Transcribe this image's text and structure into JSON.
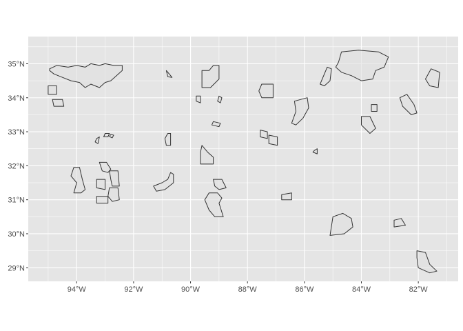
{
  "chart_data": {
    "type": "map",
    "title": "",
    "xlabel": "",
    "ylabel": "",
    "xlim": [
      -95.7,
      -80.6
    ],
    "ylim": [
      28.6,
      35.8
    ],
    "grid": true,
    "legend": "none",
    "colors": {
      "panel_background": "#e5e5e5",
      "gridline": "#ffffff",
      "region_fill": "#e0e0e0",
      "region_outline": "#333333",
      "tick_text": "#4d4d4d"
    },
    "x_ticks": [
      {
        "value": -94,
        "label": "94°W"
      },
      {
        "value": -92,
        "label": "92°W"
      },
      {
        "value": -90,
        "label": "90°W"
      },
      {
        "value": -88,
        "label": "88°W"
      },
      {
        "value": -86,
        "label": "86°W"
      },
      {
        "value": -84,
        "label": "84°W"
      },
      {
        "value": -82,
        "label": "82°W"
      }
    ],
    "y_ticks": [
      {
        "value": 29,
        "label": "29°N"
      },
      {
        "value": 30,
        "label": "30°N"
      },
      {
        "value": 31,
        "label": "31°N"
      },
      {
        "value": 32,
        "label": "32°N"
      },
      {
        "value": 33,
        "label": "33°N"
      },
      {
        "value": 34,
        "label": "34°N"
      },
      {
        "value": 35,
        "label": "35°N"
      }
    ],
    "regions": [
      {
        "coords": [
          [
            -94.95,
            34.85
          ],
          [
            -94.7,
            34.95
          ],
          [
            -94.3,
            34.9
          ],
          [
            -94.0,
            34.95
          ],
          [
            -93.7,
            34.9
          ],
          [
            -93.5,
            35.0
          ],
          [
            -93.2,
            34.95
          ],
          [
            -93.0,
            35.0
          ],
          [
            -92.7,
            34.95
          ],
          [
            -92.4,
            34.95
          ],
          [
            -92.4,
            34.8
          ],
          [
            -92.6,
            34.65
          ],
          [
            -92.8,
            34.5
          ],
          [
            -93.0,
            34.45
          ],
          [
            -93.2,
            34.3
          ],
          [
            -93.5,
            34.4
          ],
          [
            -93.7,
            34.3
          ],
          [
            -93.9,
            34.45
          ],
          [
            -94.2,
            34.5
          ],
          [
            -94.5,
            34.6
          ],
          [
            -94.8,
            34.7
          ],
          [
            -94.95,
            34.8
          ]
        ]
      },
      {
        "coords": [
          [
            -95.0,
            34.35
          ],
          [
            -94.7,
            34.35
          ],
          [
            -94.7,
            34.1
          ],
          [
            -95.0,
            34.1
          ]
        ]
      },
      {
        "coords": [
          [
            -94.85,
            33.95
          ],
          [
            -94.5,
            33.95
          ],
          [
            -94.45,
            33.75
          ],
          [
            -94.8,
            33.75
          ]
        ]
      },
      {
        "coords": [
          [
            -93.3,
            32.8
          ],
          [
            -93.2,
            32.85
          ],
          [
            -93.25,
            32.65
          ],
          [
            -93.35,
            32.7
          ]
        ]
      },
      {
        "coords": [
          [
            -93.0,
            32.95
          ],
          [
            -92.85,
            32.95
          ],
          [
            -92.9,
            32.85
          ],
          [
            -93.05,
            32.85
          ]
        ]
      },
      {
        "coords": [
          [
            -92.8,
            32.92
          ],
          [
            -92.7,
            32.9
          ],
          [
            -92.75,
            32.82
          ],
          [
            -92.85,
            32.86
          ]
        ]
      },
      {
        "coords": [
          [
            -94.1,
            31.95
          ],
          [
            -93.9,
            31.95
          ],
          [
            -93.8,
            31.6
          ],
          [
            -93.7,
            31.3
          ],
          [
            -93.85,
            31.2
          ],
          [
            -94.1,
            31.2
          ],
          [
            -94.0,
            31.5
          ],
          [
            -94.2,
            31.7
          ]
        ]
      },
      {
        "coords": [
          [
            -93.2,
            32.1
          ],
          [
            -92.95,
            32.1
          ],
          [
            -92.8,
            31.9
          ],
          [
            -92.9,
            31.8
          ],
          [
            -93.1,
            31.85
          ]
        ]
      },
      {
        "coords": [
          [
            -92.85,
            31.85
          ],
          [
            -92.55,
            31.85
          ],
          [
            -92.5,
            31.4
          ],
          [
            -92.75,
            31.4
          ],
          [
            -92.8,
            31.6
          ]
        ]
      },
      {
        "coords": [
          [
            -93.3,
            31.6
          ],
          [
            -93.0,
            31.6
          ],
          [
            -93.0,
            31.3
          ],
          [
            -93.3,
            31.35
          ]
        ]
      },
      {
        "coords": [
          [
            -92.85,
            31.35
          ],
          [
            -92.55,
            31.35
          ],
          [
            -92.5,
            31.0
          ],
          [
            -92.75,
            30.95
          ],
          [
            -92.9,
            31.1
          ]
        ]
      },
      {
        "coords": [
          [
            -93.3,
            31.1
          ],
          [
            -92.9,
            31.1
          ],
          [
            -92.9,
            30.9
          ],
          [
            -93.3,
            30.9
          ]
        ]
      },
      {
        "coords": [
          [
            -90.85,
            34.8
          ],
          [
            -90.75,
            34.7
          ],
          [
            -90.65,
            34.6
          ],
          [
            -90.8,
            34.62
          ]
        ]
      },
      {
        "coords": [
          [
            -90.8,
            32.95
          ],
          [
            -90.7,
            32.95
          ],
          [
            -90.7,
            32.6
          ],
          [
            -90.85,
            32.6
          ],
          [
            -90.9,
            32.8
          ]
        ]
      },
      {
        "coords": [
          [
            -90.7,
            31.8
          ],
          [
            -90.6,
            31.75
          ],
          [
            -90.6,
            31.5
          ],
          [
            -90.9,
            31.3
          ],
          [
            -91.2,
            31.25
          ],
          [
            -91.3,
            31.4
          ],
          [
            -91.0,
            31.5
          ],
          [
            -90.8,
            31.6
          ]
        ]
      },
      {
        "coords": [
          [
            -89.2,
            34.95
          ],
          [
            -89.0,
            34.95
          ],
          [
            -89.0,
            34.55
          ],
          [
            -89.3,
            34.3
          ],
          [
            -89.6,
            34.3
          ],
          [
            -89.6,
            34.8
          ],
          [
            -89.35,
            34.8
          ]
        ]
      },
      {
        "coords": [
          [
            -89.8,
            34.05
          ],
          [
            -89.65,
            34.05
          ],
          [
            -89.65,
            33.85
          ],
          [
            -89.8,
            33.9
          ]
        ]
      },
      {
        "coords": [
          [
            -89.0,
            34.05
          ],
          [
            -88.9,
            34.0
          ],
          [
            -88.95,
            33.85
          ],
          [
            -89.05,
            33.9
          ]
        ]
      },
      {
        "coords": [
          [
            -89.2,
            33.3
          ],
          [
            -88.95,
            33.25
          ],
          [
            -89.0,
            33.15
          ],
          [
            -89.25,
            33.2
          ]
        ]
      },
      {
        "coords": [
          [
            -89.6,
            32.6
          ],
          [
            -89.4,
            32.4
          ],
          [
            -89.2,
            32.25
          ],
          [
            -89.2,
            32.05
          ],
          [
            -89.65,
            32.05
          ],
          [
            -89.65,
            32.4
          ]
        ]
      },
      {
        "coords": [
          [
            -89.2,
            31.6
          ],
          [
            -88.9,
            31.6
          ],
          [
            -88.75,
            31.35
          ],
          [
            -89.0,
            31.3
          ],
          [
            -89.15,
            31.4
          ]
        ]
      },
      {
        "coords": [
          [
            -89.35,
            31.2
          ],
          [
            -89.05,
            31.2
          ],
          [
            -88.9,
            31.05
          ],
          [
            -89.0,
            30.9
          ],
          [
            -88.85,
            30.5
          ],
          [
            -89.15,
            30.5
          ],
          [
            -89.35,
            30.7
          ],
          [
            -89.5,
            31.0
          ]
        ]
      },
      {
        "coords": [
          [
            -87.5,
            34.4
          ],
          [
            -87.1,
            34.4
          ],
          [
            -87.1,
            34.0
          ],
          [
            -87.5,
            34.0
          ],
          [
            -87.6,
            34.2
          ]
        ]
      },
      {
        "coords": [
          [
            -87.55,
            33.05
          ],
          [
            -87.3,
            33.0
          ],
          [
            -87.3,
            32.8
          ],
          [
            -87.55,
            32.85
          ]
        ]
      },
      {
        "coords": [
          [
            -87.25,
            32.9
          ],
          [
            -86.95,
            32.85
          ],
          [
            -86.95,
            32.6
          ],
          [
            -87.25,
            32.65
          ]
        ]
      },
      {
        "coords": [
          [
            -86.35,
            33.9
          ],
          [
            -85.9,
            34.0
          ],
          [
            -85.85,
            33.7
          ],
          [
            -86.05,
            33.4
          ],
          [
            -86.3,
            33.2
          ],
          [
            -86.45,
            33.25
          ],
          [
            -86.3,
            33.6
          ]
        ]
      },
      {
        "coords": [
          [
            -85.65,
            32.45
          ],
          [
            -85.55,
            32.5
          ],
          [
            -85.55,
            32.35
          ],
          [
            -85.7,
            32.4
          ]
        ]
      },
      {
        "coords": [
          [
            -86.8,
            31.15
          ],
          [
            -86.45,
            31.2
          ],
          [
            -86.45,
            31.0
          ],
          [
            -86.8,
            31.0
          ]
        ]
      },
      {
        "coords": [
          [
            -85.2,
            34.9
          ],
          [
            -85.05,
            34.85
          ],
          [
            -85.1,
            34.5
          ],
          [
            -85.3,
            34.35
          ],
          [
            -85.45,
            34.4
          ]
        ]
      },
      {
        "coords": [
          [
            -84.8,
            35.05
          ],
          [
            -84.7,
            35.35
          ],
          [
            -84.1,
            35.4
          ],
          [
            -83.4,
            35.35
          ],
          [
            -83.05,
            35.2
          ],
          [
            -83.2,
            34.9
          ],
          [
            -83.5,
            34.8
          ],
          [
            -83.6,
            34.55
          ],
          [
            -84.0,
            34.5
          ],
          [
            -84.35,
            34.65
          ],
          [
            -84.7,
            34.75
          ],
          [
            -84.9,
            34.9
          ]
        ]
      },
      {
        "coords": [
          [
            -83.65,
            33.8
          ],
          [
            -83.45,
            33.8
          ],
          [
            -83.45,
            33.6
          ],
          [
            -83.65,
            33.6
          ]
        ]
      },
      {
        "coords": [
          [
            -84.0,
            33.45
          ],
          [
            -83.7,
            33.45
          ],
          [
            -83.5,
            33.1
          ],
          [
            -83.7,
            32.95
          ],
          [
            -84.0,
            33.2
          ]
        ]
      },
      {
        "coords": [
          [
            -85.0,
            30.5
          ],
          [
            -84.65,
            30.6
          ],
          [
            -84.35,
            30.45
          ],
          [
            -84.3,
            30.2
          ],
          [
            -84.6,
            30.0
          ],
          [
            -85.1,
            29.95
          ]
        ]
      },
      {
        "coords": [
          [
            -82.65,
            34.0
          ],
          [
            -82.4,
            34.1
          ],
          [
            -82.15,
            33.8
          ],
          [
            -82.05,
            33.55
          ],
          [
            -82.25,
            33.5
          ],
          [
            -82.55,
            33.75
          ]
        ]
      },
      {
        "coords": [
          [
            -82.85,
            30.4
          ],
          [
            -82.6,
            30.45
          ],
          [
            -82.45,
            30.25
          ],
          [
            -82.85,
            30.2
          ]
        ]
      },
      {
        "coords": [
          [
            -81.55,
            34.85
          ],
          [
            -81.25,
            34.75
          ],
          [
            -81.3,
            34.3
          ],
          [
            -81.6,
            34.35
          ],
          [
            -81.75,
            34.55
          ]
        ]
      },
      {
        "coords": [
          [
            -82.05,
            29.5
          ],
          [
            -81.75,
            29.45
          ],
          [
            -81.6,
            29.1
          ],
          [
            -81.35,
            28.9
          ],
          [
            -81.6,
            28.85
          ],
          [
            -82.0,
            29.0
          ],
          [
            -82.05,
            29.3
          ]
        ]
      }
    ]
  }
}
